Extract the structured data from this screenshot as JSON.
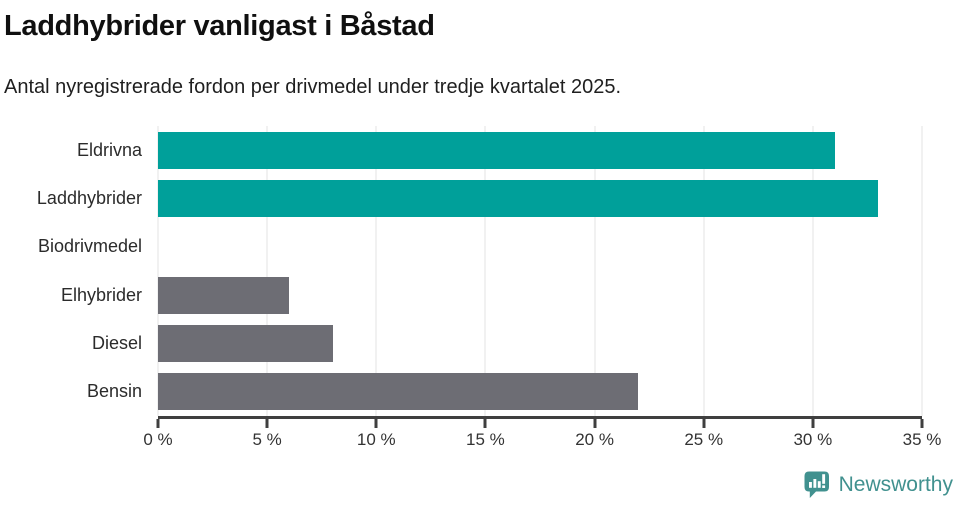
{
  "chart_data": {
    "type": "bar",
    "orientation": "horizontal",
    "title": "Laddhybrider vanligast i Båstad",
    "subtitle": "Antal nyregistrerade fordon per drivmedel under tredje kvartalet 2025.",
    "categories": [
      "Eldrivna",
      "Laddhybrider",
      "Biodrivmedel",
      "Elhybrider",
      "Diesel",
      "Bensin"
    ],
    "values": [
      31,
      33,
      0,
      6,
      8,
      22
    ],
    "unit": "%",
    "xlim": [
      0,
      35
    ],
    "xticks": [
      0,
      5,
      10,
      15,
      20,
      25,
      30,
      35
    ],
    "xtick_labels": [
      "0 %",
      "5 %",
      "10 %",
      "15 %",
      "20 %",
      "25 %",
      "30 %",
      "35 %"
    ],
    "bar_colors": [
      "#00a09a",
      "#00a09a",
      "#6d6d74",
      "#6d6d74",
      "#6d6d74",
      "#6d6d74"
    ],
    "grid": true,
    "legend": "none",
    "ylabel": "",
    "xlabel": ""
  },
  "colors": {
    "highlight_teal": "#00a09a",
    "bar_gray": "#6d6d74",
    "axis": "#3f3f3f",
    "gridline": "#e3e3e3",
    "logo_teal": "#41918f"
  },
  "footer": {
    "brand": "Newsworthy"
  }
}
